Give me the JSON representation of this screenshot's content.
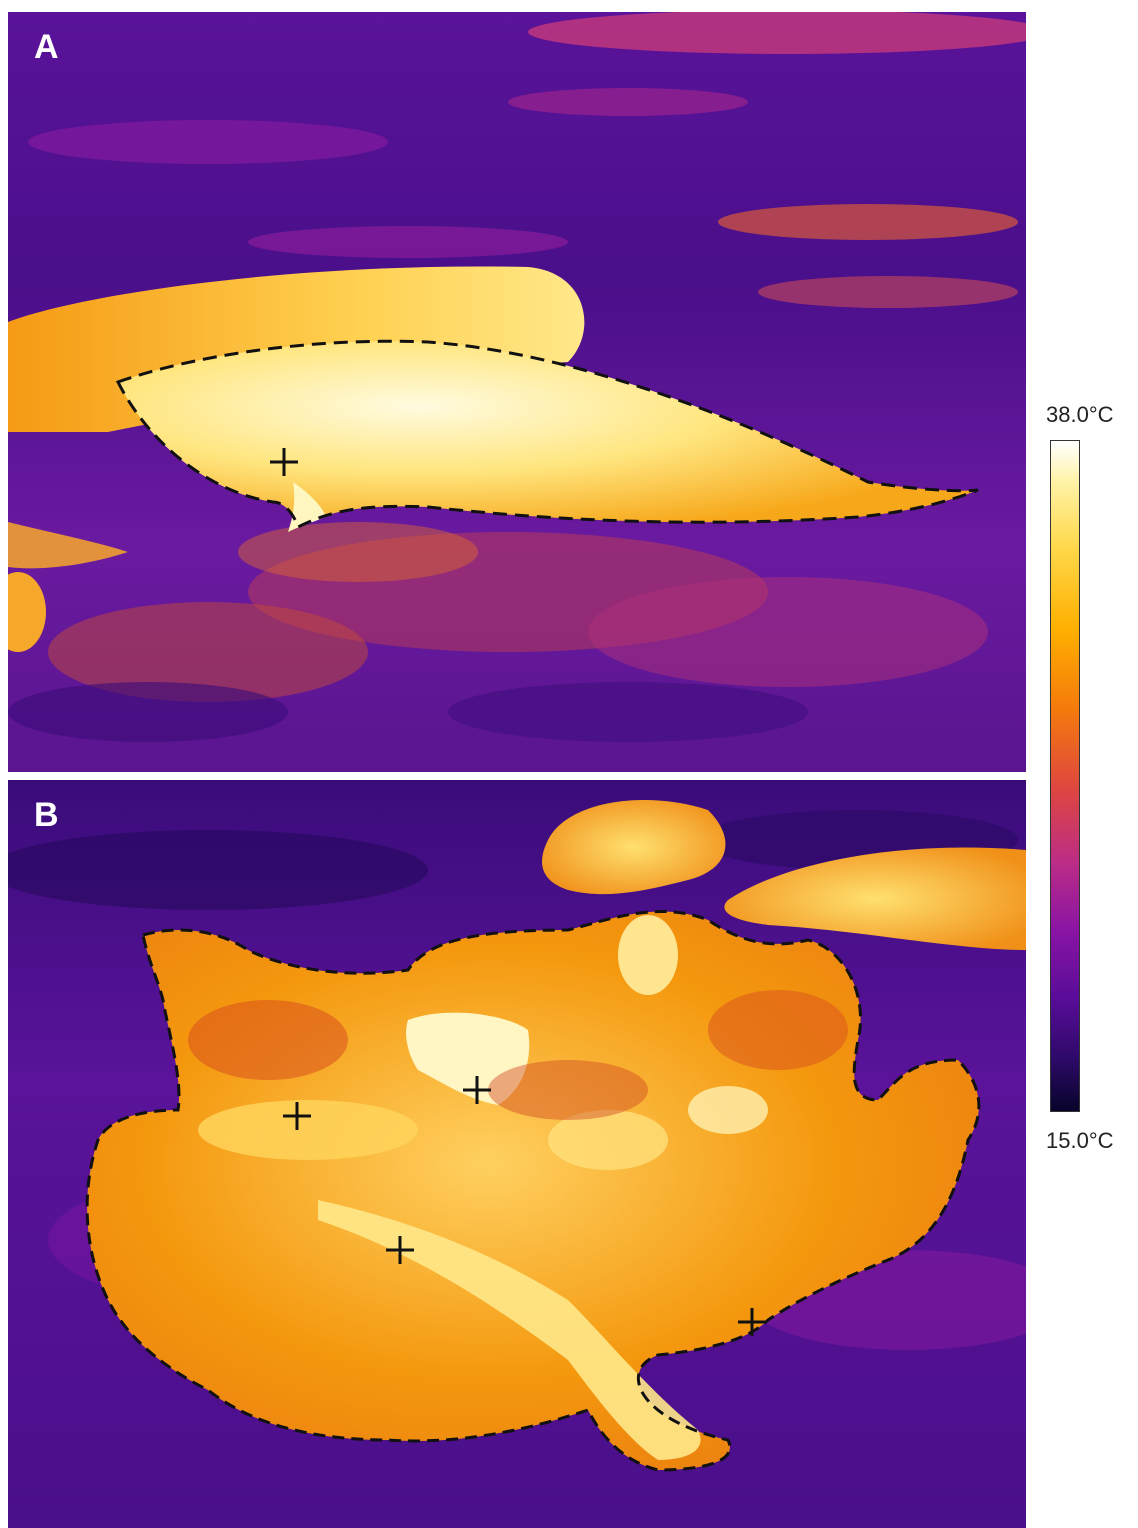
{
  "panels": [
    {
      "label": "A",
      "subject": "single seal on vegetated ground",
      "markers": 1
    },
    {
      "label": "B",
      "subject": "huddled group of seals",
      "markers": 4
    }
  ],
  "color_scale": {
    "max_label": "38.0°C",
    "min_label": "15.0°C",
    "palette": [
      "#ffffff",
      "#ffd84a",
      "#f47a0c",
      "#de4640",
      "#8a14a4",
      "#2e0a6a",
      "#07042a"
    ]
  },
  "colors": {
    "cold": "#3a0c7a",
    "warm": "#f47a0c",
    "hot": "#fff3a8",
    "outline": "#111111"
  }
}
